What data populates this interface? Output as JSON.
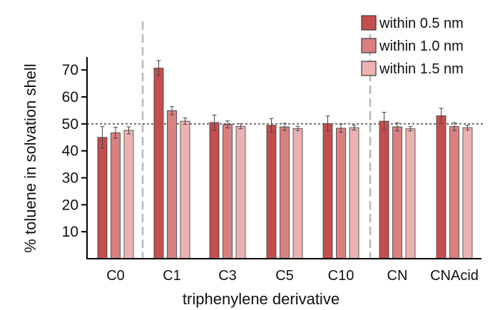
{
  "chart_data": {
    "type": "bar",
    "xlabel": "triphenylene derivative",
    "ylabel": "% toluene in solvation shell",
    "ylim": [
      0,
      75
    ],
    "yticks": [
      10,
      20,
      30,
      40,
      50,
      60,
      70
    ],
    "reference_line": 50,
    "separators_after_category": [
      "C0",
      "C10"
    ],
    "legend_position": "top-right",
    "categories": [
      "C0",
      "C1",
      "C3",
      "C5",
      "C10",
      "CN",
      "CNAcid"
    ],
    "series": [
      {
        "name": "within 0.5 nm",
        "color": "#c44e4e",
        "values": [
          45.0,
          70.7,
          50.5,
          49.5,
          50.1,
          51.0,
          53.0
        ],
        "errors": [
          4.0,
          2.8,
          2.8,
          2.5,
          2.8,
          3.3,
          2.8
        ]
      },
      {
        "name": "within 1.0 nm",
        "color": "#d98080",
        "values": [
          46.7,
          54.9,
          49.8,
          48.9,
          48.4,
          48.9,
          49.0
        ],
        "errors": [
          2.0,
          1.5,
          1.3,
          1.3,
          1.5,
          1.5,
          1.5
        ]
      },
      {
        "name": "within 1.5 nm",
        "color": "#ecb2b2",
        "values": [
          47.6,
          51.0,
          49.1,
          48.3,
          48.6,
          48.2,
          48.6
        ],
        "errors": [
          1.3,
          1.2,
          0.9,
          0.8,
          0.9,
          0.8,
          0.9
        ]
      }
    ]
  }
}
